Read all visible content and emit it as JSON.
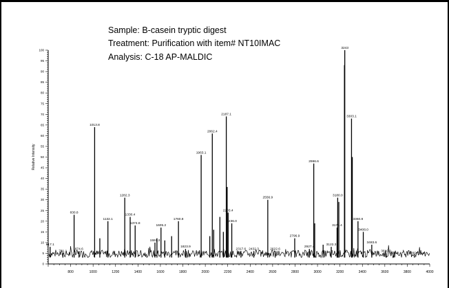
{
  "header": {
    "sample": "Sample: B-casein tryptic digest",
    "treatment": "Treatment: Purification with item# NT10IMAC",
    "analysis": "Analysis:  C-18 AP-MALDIC"
  },
  "chart_data": {
    "type": "line",
    "ylabel": "Relative Intensity",
    "xlabel": "",
    "xlim": [
      600,
      4000
    ],
    "ylim": [
      0,
      100
    ],
    "xticks": [
      "800",
      "1000",
      "1200",
      "1400",
      "1600",
      "1800",
      "2000",
      "2200",
      "2400",
      "2600",
      "2800",
      "3000",
      "3200",
      "3400",
      "3600",
      "3800",
      "4000"
    ],
    "yticks": [
      "0",
      "5",
      "10",
      "15",
      "20",
      "25",
      "30",
      "35",
      "40",
      "45",
      "50",
      "55",
      "60",
      "65",
      "70",
      "75",
      "80",
      "85",
      "90",
      "95",
      "100"
    ],
    "peaks": [
      {
        "x": 617.1,
        "y": 8,
        "label": "617.1"
      },
      {
        "x": 731.1,
        "y": 5,
        "label": "731.1"
      },
      {
        "x": 830.8,
        "y": 23,
        "label": "830.8"
      },
      {
        "x": 874.6,
        "y": 6,
        "label": "874.6"
      },
      {
        "x": 1013.8,
        "y": 64,
        "label": "1013.8"
      },
      {
        "x": 1060.0,
        "y": 12,
        "label": ""
      },
      {
        "x": 1132.1,
        "y": 20,
        "label": "1132.1"
      },
      {
        "x": 1282.3,
        "y": 31,
        "label": "1282.3"
      },
      {
        "x": 1330.4,
        "y": 22,
        "label": "1330.4"
      },
      {
        "x": 1374.8,
        "y": 18,
        "label": "1374.8"
      },
      {
        "x": 1551.3,
        "y": 10,
        "label": "1551.3"
      },
      {
        "x": 1569.0,
        "y": 12,
        "label": ""
      },
      {
        "x": 1605.2,
        "y": 17,
        "label": "1605.2"
      },
      {
        "x": 1639.0,
        "y": 11,
        "label": ""
      },
      {
        "x": 1700.0,
        "y": 13,
        "label": ""
      },
      {
        "x": 1760.8,
        "y": 20,
        "label": "1760.8"
      },
      {
        "x": 1823.9,
        "y": 7,
        "label": "1823.9"
      },
      {
        "x": 1963.1,
        "y": 51,
        "label": "1963.1"
      },
      {
        "x": 2040.0,
        "y": 13,
        "label": ""
      },
      {
        "x": 2062.4,
        "y": 61,
        "label": "2062.4"
      },
      {
        "x": 2075.0,
        "y": 16,
        "label": ""
      },
      {
        "x": 2130.0,
        "y": 22,
        "label": ""
      },
      {
        "x": 2161.0,
        "y": 15,
        "label": ""
      },
      {
        "x": 2187.1,
        "y": 69,
        "label": "2187.1"
      },
      {
        "x": 2195.0,
        "y": 36,
        "label": ""
      },
      {
        "x": 2203.4,
        "y": 24,
        "label": "2203.4"
      },
      {
        "x": 2236.0,
        "y": 19,
        "label": "2236.0"
      },
      {
        "x": 2317.6,
        "y": 6,
        "label": "2317.6"
      },
      {
        "x": 2432.3,
        "y": 6,
        "label": "2432.3"
      },
      {
        "x": 2556.9,
        "y": 30,
        "label": "2556.9"
      },
      {
        "x": 2622.6,
        "y": 6,
        "label": "2622.6"
      },
      {
        "x": 2796.9,
        "y": 12,
        "label": "2796.9"
      },
      {
        "x": 2927.4,
        "y": 7,
        "label": "2927.4"
      },
      {
        "x": 2966.6,
        "y": 47,
        "label": "2966.6"
      },
      {
        "x": 2975.0,
        "y": 19,
        "label": ""
      },
      {
        "x": 3050.0,
        "y": 9,
        "label": ""
      },
      {
        "x": 3122.3,
        "y": 8,
        "label": "3122.3"
      },
      {
        "x": 3174.4,
        "y": 17,
        "label": "3174.4"
      },
      {
        "x": 3180.0,
        "y": 31,
        "label": "3180.0"
      },
      {
        "x": 3190.0,
        "y": 29,
        "label": ""
      },
      {
        "x": 3240.0,
        "y": 93,
        "label": ""
      },
      {
        "x": 3243.0,
        "y": 100,
        "label": "3243"
      },
      {
        "x": 3303.1,
        "y": 68,
        "label": "3303.1"
      },
      {
        "x": 3310.0,
        "y": 50,
        "label": ""
      },
      {
        "x": 3360.8,
        "y": 20,
        "label": "3360.8"
      },
      {
        "x": 3408.0,
        "y": 15,
        "label": "3408.0"
      },
      {
        "x": 3483.6,
        "y": 9,
        "label": "3483.6"
      },
      {
        "x": 3610.9,
        "y": 5,
        "label": "3610.9"
      },
      {
        "x": 3679.3,
        "y": 4,
        "label": "3679.3"
      },
      {
        "x": 3862.8,
        "y": 4,
        "label": "3862.8"
      }
    ]
  }
}
